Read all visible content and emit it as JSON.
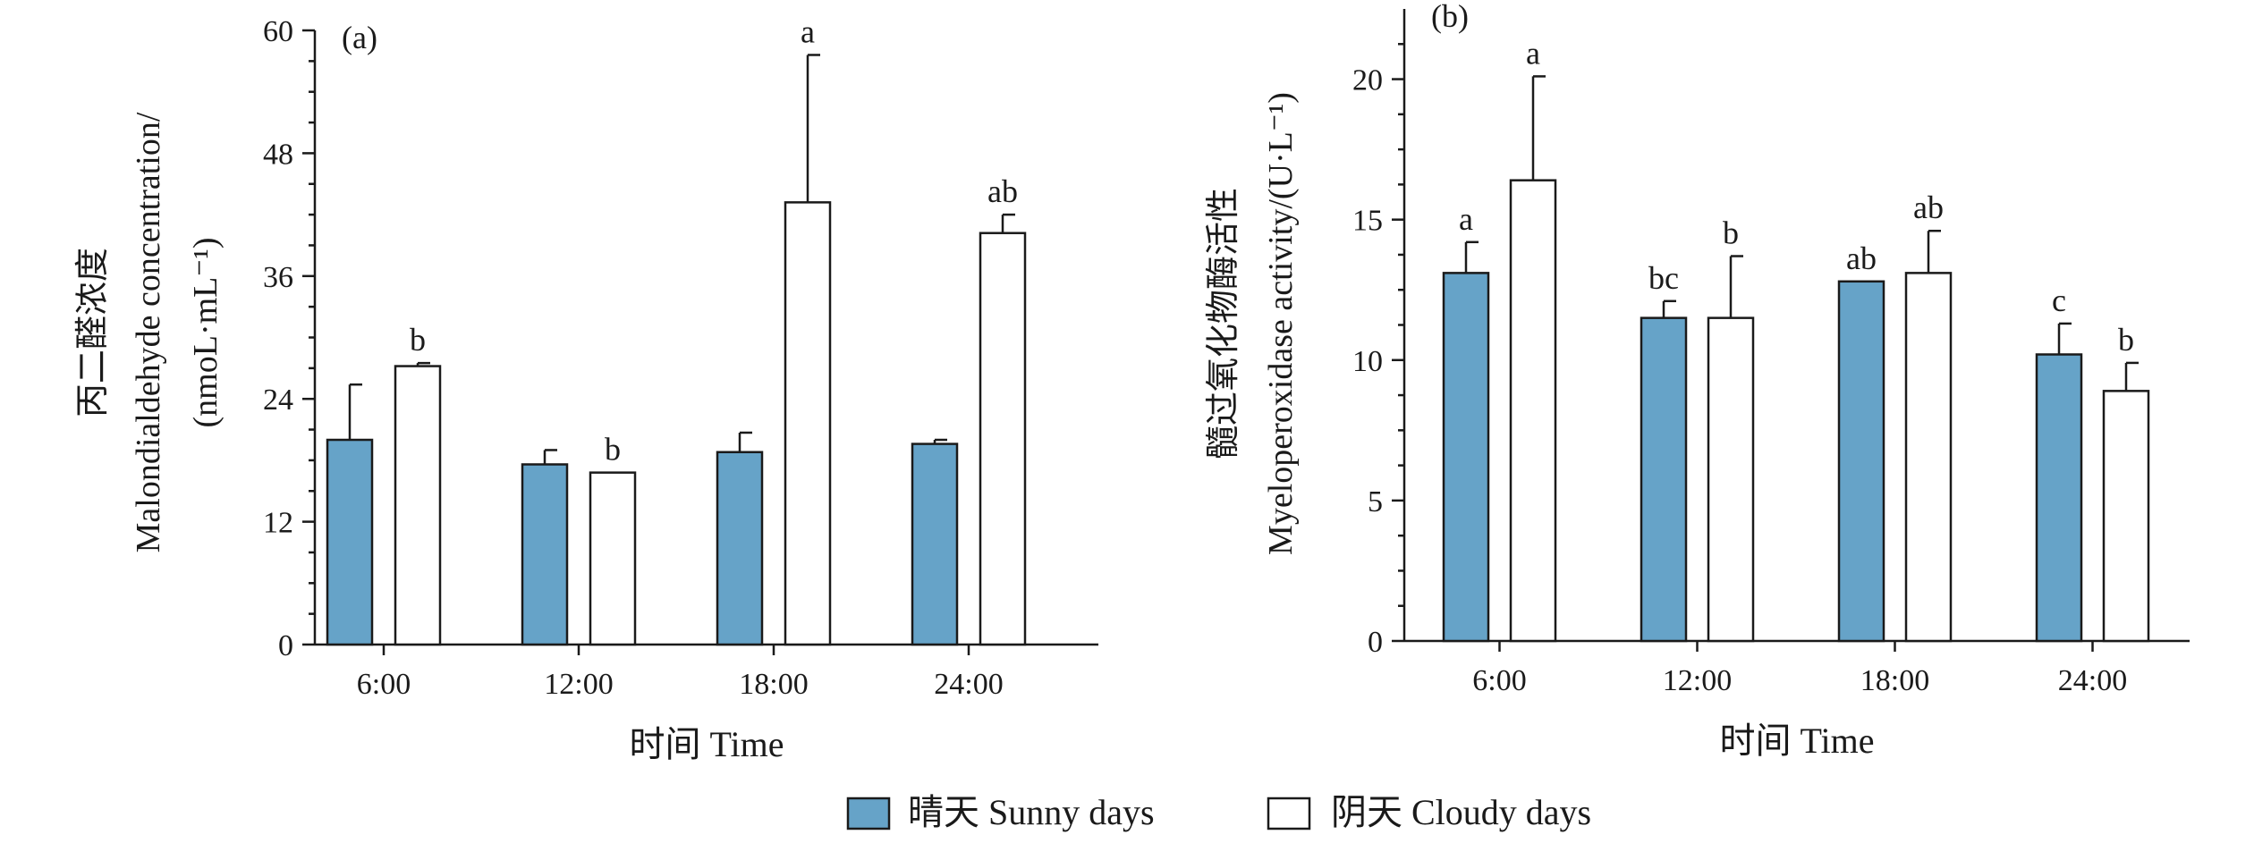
{
  "legend": {
    "sunny": {
      "label": "晴天 Sunny days",
      "color": "#66a3c8"
    },
    "cloudy": {
      "label": "阴天 Cloudy days",
      "color": "#ffffff"
    }
  },
  "chart_data": [
    {
      "type": "bar",
      "panel": "(a)",
      "title": "",
      "xlabel": "时间 Time",
      "ylabel_lines": [
        "丙二醛浓度",
        "Malondialdehyde concentration/",
        "(nmoL·mL⁻¹)"
      ],
      "categories": [
        "6:00",
        "12:00",
        "18:00",
        "24:00"
      ],
      "ylim": [
        0,
        60
      ],
      "yticks": [
        0,
        12,
        24,
        36,
        48,
        60
      ],
      "ytick_labels": [
        "0",
        "12",
        "24",
        "36",
        "48",
        "60"
      ],
      "series": [
        {
          "name": "晴天 Sunny days",
          "color": "#66a3c8",
          "values": [
            20,
            17.6,
            18.8,
            19.6
          ],
          "errors": [
            5.4,
            1.4,
            1.9,
            0.4
          ],
          "labels": [
            "",
            "",
            "",
            ""
          ]
        },
        {
          "name": "阴天 Cloudy days",
          "color": "#ffffff",
          "values": [
            27.2,
            16.8,
            43.2,
            40.2
          ],
          "errors": [
            0.3,
            0,
            14.4,
            1.8
          ],
          "labels": [
            "b",
            "b",
            "a",
            "ab"
          ]
        }
      ]
    },
    {
      "type": "bar",
      "panel": "(b)",
      "title": "",
      "xlabel": "时间 Time",
      "ylabel_lines": [
        "髓过氧化物酶活性",
        "Myeloperoxidase activity/(U·L⁻¹)"
      ],
      "categories": [
        "6:00",
        "12:00",
        "18:00",
        "24:00"
      ],
      "ylim": [
        0,
        22.5
      ],
      "yticks": [
        0,
        5,
        10,
        15,
        20
      ],
      "ytick_labels": [
        "0",
        "5",
        "10",
        "15",
        "20"
      ],
      "series": [
        {
          "name": "晴天 Sunny days",
          "color": "#66a3c8",
          "values": [
            13.1,
            11.5,
            12.8,
            10.2
          ],
          "errors": [
            1.1,
            0.6,
            0,
            1.1
          ],
          "labels": [
            "a",
            "bc",
            "ab",
            "c"
          ]
        },
        {
          "name": "阴天 Cloudy days",
          "color": "#ffffff",
          "values": [
            16.4,
            11.5,
            13.1,
            8.9
          ],
          "errors": [
            3.7,
            2.2,
            1.5,
            1.0
          ],
          "labels": [
            "a",
            "b",
            "ab",
            "b"
          ]
        }
      ]
    }
  ]
}
